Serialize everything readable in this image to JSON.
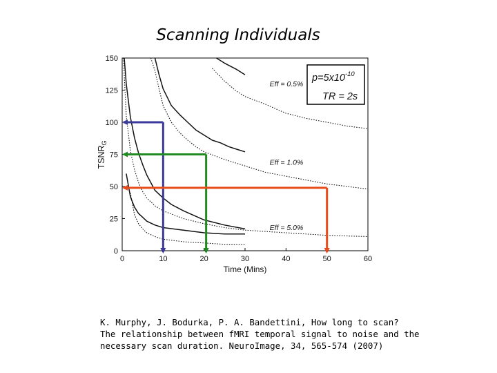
{
  "slide": {
    "title": "Scanning Individuals",
    "citation": [
      "K. Murphy, J. Bodurka, P. A. Bandettini, How long to scan?",
      "The relationship between fMRI temporal signal to noise and the",
      "necessary scan duration. NeuroImage, 34, 565-574 (2007)"
    ]
  },
  "colors": {
    "blue": "#3a3a9a",
    "green": "#1f8a1f",
    "red": "#e84a1a"
  },
  "chart_data": {
    "type": "line",
    "xlabel": "Time (Mins)",
    "ylabel": "TSNR",
    "ylabel_subscript": "G",
    "x_ticks": [
      0,
      10,
      20,
      30,
      40,
      50,
      60
    ],
    "y_ticks": [
      0,
      25,
      50,
      75,
      100,
      125,
      150
    ],
    "xlim": [
      0,
      60
    ],
    "ylim": [
      0,
      150
    ],
    "legend_box": {
      "line1_main": "p=5x10",
      "line1_exp": "-10",
      "line2": "TR = 2s"
    },
    "series": [
      {
        "name": "Eff = 0.5%",
        "style": "solid",
        "x": [
          8,
          9,
          10,
          12,
          14,
          16,
          18,
          20,
          22,
          24,
          26,
          28,
          30
        ],
        "y": [
          150,
          137,
          126,
          113,
          106,
          100,
          94,
          90,
          86,
          84,
          81,
          79,
          77
        ]
      },
      {
        "style": "dotted",
        "x": [
          7,
          8,
          9,
          10,
          12,
          14,
          16,
          18,
          20,
          25,
          30,
          35,
          40,
          45,
          50,
          55,
          60
        ],
        "y": [
          150,
          140,
          126,
          113,
          100,
          92,
          86,
          81,
          77,
          71,
          66,
          61,
          58,
          55,
          52,
          50,
          48
        ]
      },
      {
        "style": "solid",
        "x": [
          23,
          25,
          28,
          30
        ],
        "y": [
          150,
          146,
          141,
          137
        ]
      },
      {
        "style": "dotted",
        "x": [
          22,
          25,
          28,
          30,
          35,
          40,
          45,
          50,
          55,
          60
        ],
        "y": [
          142,
          132,
          124,
          120,
          114,
          107,
          103,
          100,
          97,
          95
        ]
      },
      {
        "name": "Eff = 1.0%",
        "style": "solid",
        "x": [
          0.5,
          1,
          2,
          3,
          4,
          5,
          6,
          8,
          10,
          12,
          15,
          20,
          25,
          30
        ],
        "y": [
          150,
          130,
          104,
          88,
          76,
          67,
          59,
          47,
          41,
          36,
          31,
          24,
          20,
          17
        ]
      },
      {
        "style": "dotted",
        "x": [
          0.3,
          1,
          2,
          3,
          4,
          5,
          6,
          8,
          10,
          15,
          20,
          25,
          30,
          40,
          50,
          60
        ],
        "y": [
          150,
          105,
          78,
          63,
          53,
          46,
          41,
          35,
          31,
          25,
          21,
          18,
          16,
          14,
          12,
          11
        ]
      },
      {
        "name": "Eff = 5.0%",
        "style": "solid",
        "x": [
          1,
          2,
          3,
          4,
          5,
          6,
          8,
          10,
          15,
          20,
          25,
          30
        ],
        "y": [
          60,
          42,
          34,
          29,
          26,
          23,
          20,
          18,
          16,
          14,
          13,
          13
        ]
      },
      {
        "style": "dotted",
        "x": [
          2,
          3,
          4,
          5,
          6,
          8,
          10,
          15,
          20,
          25,
          30
        ],
        "y": [
          45,
          28,
          21,
          17,
          14,
          11,
          9,
          7,
          6,
          5,
          5
        ]
      }
    ],
    "curve_labels": [
      {
        "text": "Eff = 0.5%",
        "x": 36,
        "y": 128
      },
      {
        "text": "Eff = 1.0%",
        "x": 36,
        "y": 67
      },
      {
        "text": "Eff = 5.0%",
        "x": 36,
        "y": 16
      }
    ],
    "arrows": [
      {
        "color": "blue",
        "tsnr": 100,
        "time": 10
      },
      {
        "color": "green",
        "tsnr": 75,
        "time": 20.5
      },
      {
        "color": "red",
        "tsnr": 49,
        "time": 50
      }
    ]
  }
}
